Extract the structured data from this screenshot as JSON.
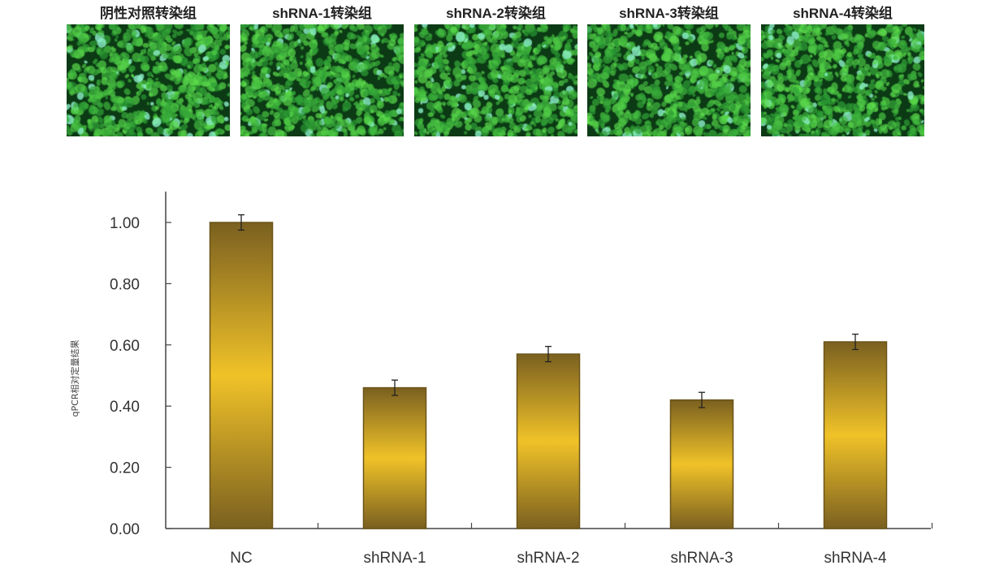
{
  "image_panels": [
    {
      "label": "阴性对照转染组"
    },
    {
      "label": "shRNA-1转染组"
    },
    {
      "label": "shRNA-2转染组"
    },
    {
      "label": "shRNA-3转染组"
    },
    {
      "label": "shRNA-4转染组"
    }
  ],
  "chart_data": {
    "type": "bar",
    "title": "",
    "xlabel": "",
    "ylabel": "qPCR相对定量结果",
    "categories": [
      "NC",
      "shRNA-1",
      "shRNA-2",
      "shRNA-3",
      "shRNA-4"
    ],
    "values": [
      1.0,
      0.46,
      0.57,
      0.42,
      0.61
    ],
    "errors": [
      0.025,
      0.025,
      0.025,
      0.025,
      0.025
    ],
    "ylim": [
      0,
      1.1
    ],
    "yticks": [
      "0.00",
      "0.20",
      "0.40",
      "0.60",
      "0.80",
      "1.00"
    ],
    "grid": false,
    "colors": {
      "bar_edge": "#6b5418",
      "bar_mid": "#f0c228",
      "bar_dark": "#7a6020",
      "axis": "#444444",
      "cells": "#3fd04a"
    }
  }
}
